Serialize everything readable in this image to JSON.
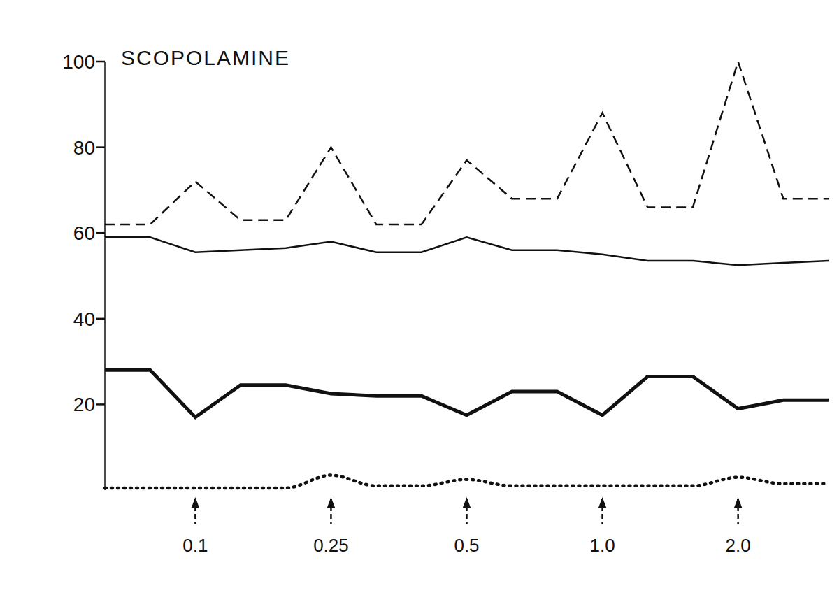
{
  "chart_data": {
    "type": "line",
    "title": "SCOPOLAMINE",
    "categories": [
      null,
      null,
      "0.1",
      null,
      null,
      "0.25",
      null,
      null,
      "0.5",
      null,
      null,
      "1.0",
      null,
      null,
      "2.0",
      null,
      null
    ],
    "series": [
      {
        "color": "#111111",
        "line_style": "dashed",
        "values": [
          62,
          62,
          72,
          63,
          63,
          80,
          62,
          62,
          77,
          68,
          68,
          88,
          66,
          66,
          100,
          68,
          68
        ]
      },
      {
        "color": "#111111",
        "line_style": "solid",
        "values": [
          59,
          59,
          55.5,
          56,
          56.5,
          58,
          55.5,
          55.5,
          59,
          56,
          56,
          55,
          53.5,
          53.5,
          52.5,
          53,
          53.5
        ]
      },
      {
        "color": "#111111",
        "line_style": "solid",
        "values": [
          28,
          28,
          17,
          24.5,
          24.5,
          22.5,
          22,
          22,
          17.5,
          23,
          23,
          17.5,
          26.5,
          26.5,
          19,
          21,
          21
        ]
      },
      {
        "color": "#111111",
        "line_style": "dotted",
        "values": [
          0.5,
          0.5,
          0.5,
          0.5,
          0.5,
          3.5,
          1,
          1,
          2.5,
          1,
          1,
          1,
          1,
          1,
          3,
          1.5,
          1.5
        ]
      }
    ],
    "ylim": [
      0,
      100
    ],
    "yticks": [
      20,
      40,
      60,
      80,
      100
    ],
    "grid": false
  }
}
